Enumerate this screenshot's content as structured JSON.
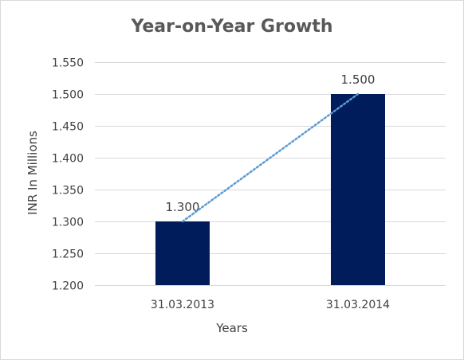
{
  "chart_data": {
    "type": "bar",
    "title": "Year-on-Year Growth",
    "xlabel": "Years",
    "ylabel": "INR In Millions",
    "categories": [
      "31.03.2013",
      "31.03.2014"
    ],
    "values": [
      1.3,
      1.5
    ],
    "data_labels": [
      "1.300",
      "1.500"
    ],
    "ylim": [
      1.2,
      1.55
    ],
    "yticks": [
      "1.200",
      "1.250",
      "1.300",
      "1.350",
      "1.400",
      "1.450",
      "1.500",
      "1.550"
    ],
    "grid": true,
    "legend": "none",
    "trendline": {
      "type": "linear",
      "style": "dotted"
    },
    "colors": {
      "bar": "#001c5a",
      "trendline": "#5b9bd5",
      "grid": "#d9d9d9"
    }
  }
}
